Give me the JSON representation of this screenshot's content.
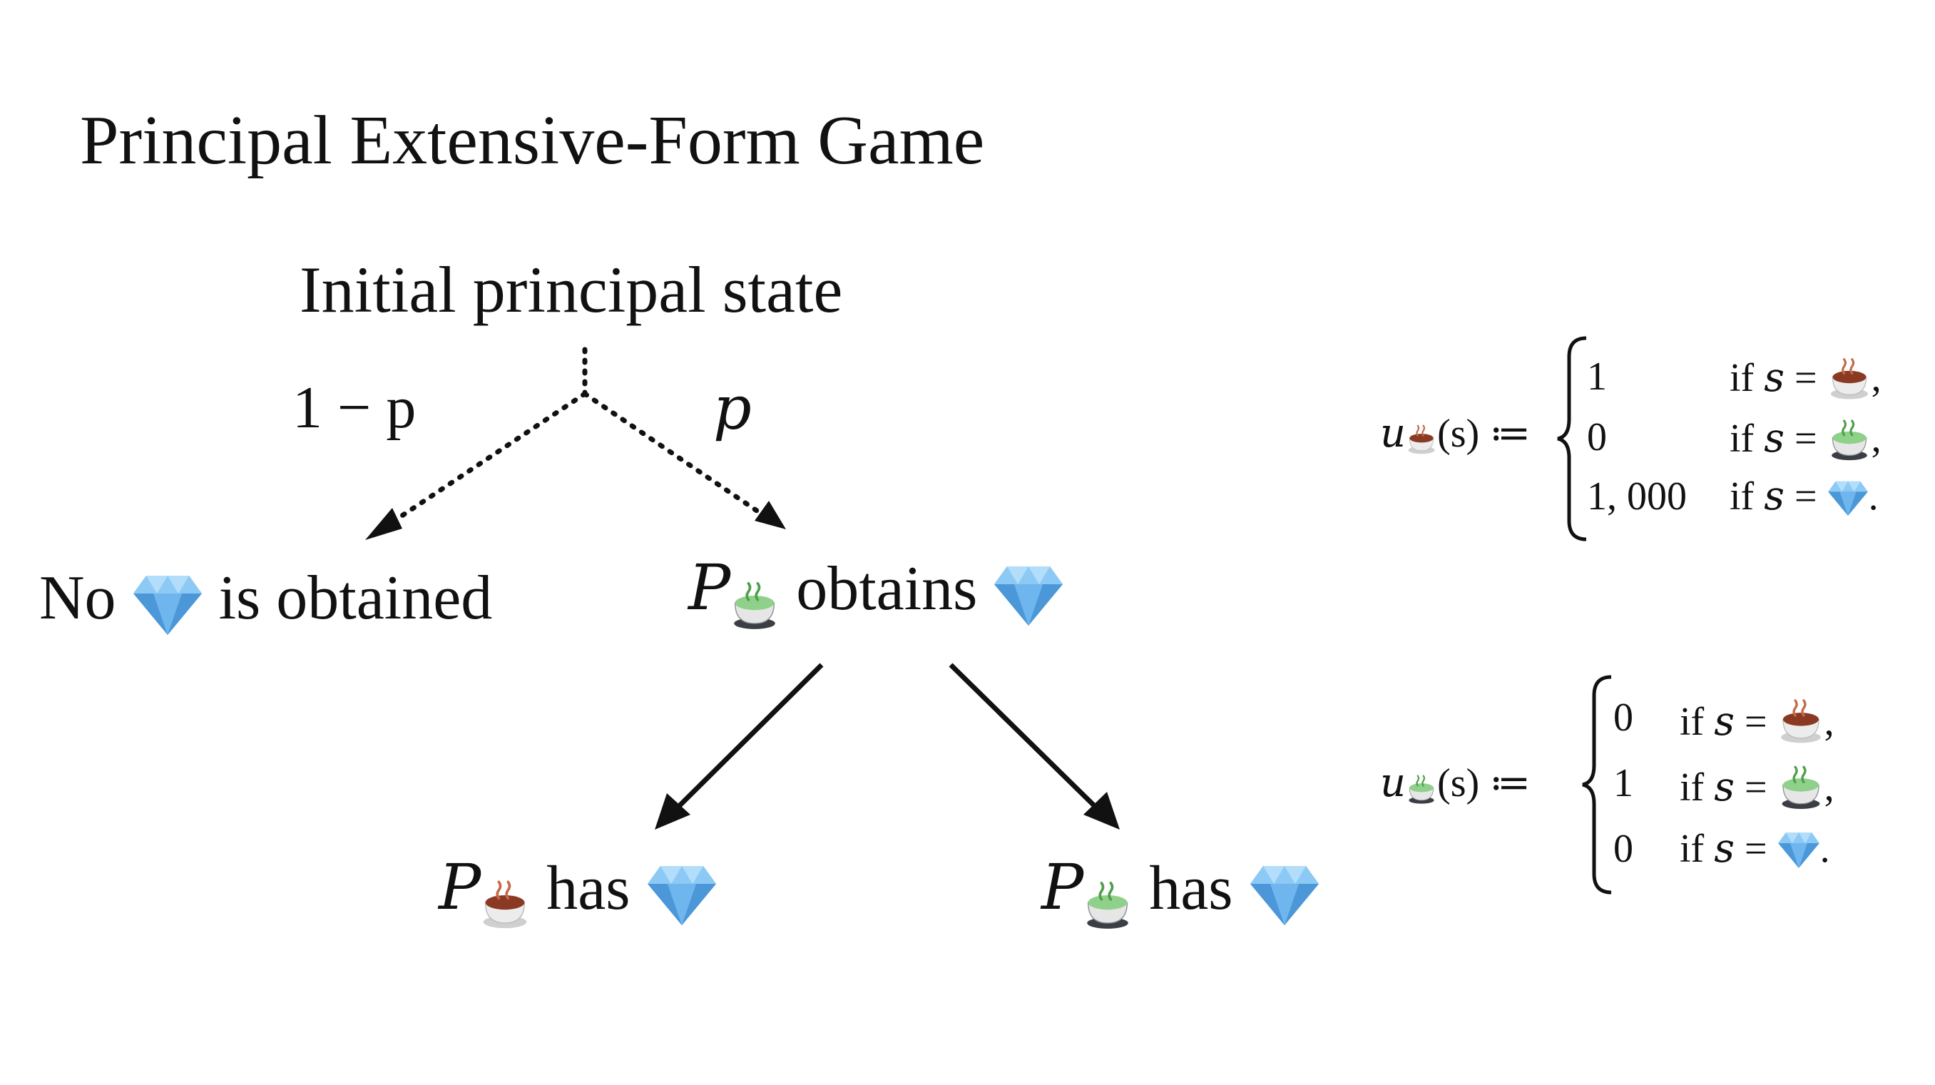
{
  "title": "Principal Extensive-Form Game",
  "tree": {
    "root_label": "Initial principal state",
    "left_prob": "1 − p",
    "right_prob": "p",
    "left_outcome": {
      "before": "No",
      "after": "is obtained"
    },
    "right_outcome": {
      "principal": "P",
      "after": "obtains"
    },
    "leaf_left": {
      "principal": "P",
      "after": "has"
    },
    "leaf_right": {
      "principal": "P",
      "after": "has"
    }
  },
  "utility_brown": {
    "lhs_u": "u",
    "lhs_arg": "(s) ≔",
    "cases": [
      {
        "value": "1",
        "cond": "if",
        "var": "s",
        "eq": "=",
        "icon": "brown-tea-icon",
        "punct": ","
      },
      {
        "value": "0",
        "cond": "if",
        "var": "s",
        "eq": "=",
        "icon": "green-tea-icon",
        "punct": ","
      },
      {
        "value": "1, 000",
        "cond": "if",
        "var": "s",
        "eq": "=",
        "icon": "diamond-icon",
        "punct": "."
      }
    ]
  },
  "utility_green": {
    "lhs_u": "u",
    "lhs_arg": "(s) ≔",
    "cases": [
      {
        "value": "0",
        "cond": "if",
        "var": "s",
        "eq": "=",
        "icon": "brown-tea-icon",
        "punct": ","
      },
      {
        "value": "1",
        "cond": "if",
        "var": "s",
        "eq": "=",
        "icon": "green-tea-icon",
        "punct": ","
      },
      {
        "value": "0",
        "cond": "if",
        "var": "s",
        "eq": "=",
        "icon": "diamond-icon",
        "punct": "."
      }
    ]
  },
  "colors": {
    "diamond": "#5aa8e6",
    "brown_tea": "#8a3a22",
    "green_tea": "#8fd08a",
    "cup": "#e8e8e8",
    "ink": "#111111"
  }
}
